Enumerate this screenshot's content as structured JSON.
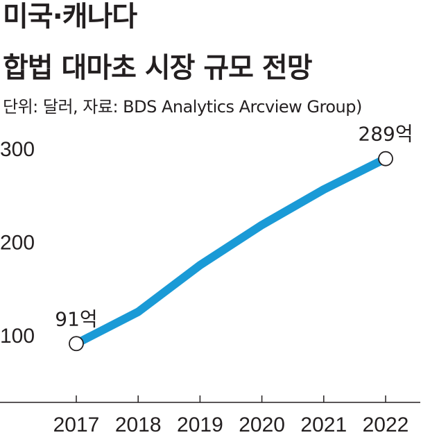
{
  "title_lines": [
    "미국·캐나다",
    "합법 대마초 시장 규모 전망"
  ],
  "source_note": "단위: 달러, 자료: BDS Analytics Arcview Group)",
  "colors": {
    "line": "#1a9ad6",
    "text": "#231f20",
    "axis": "#231f20",
    "marker_fill": "#ffffff"
  },
  "chart_data": {
    "type": "line",
    "title": "미국·캐나다 합법 대마초 시장 규모 전망",
    "xlabel": "",
    "ylabel": "",
    "x": [
      "2017",
      "2018",
      "2019",
      "2020",
      "2021",
      "2022"
    ],
    "series": [
      {
        "values": [
          91,
          125,
          175,
          218,
          256,
          289
        ]
      }
    ],
    "yticks": [
      100,
      200,
      300
    ],
    "ylim": [
      37,
      340
    ],
    "grid": false,
    "annotations": [
      {
        "x": "2017",
        "text": "91억"
      },
      {
        "x": "2022",
        "text": "289억"
      }
    ]
  }
}
